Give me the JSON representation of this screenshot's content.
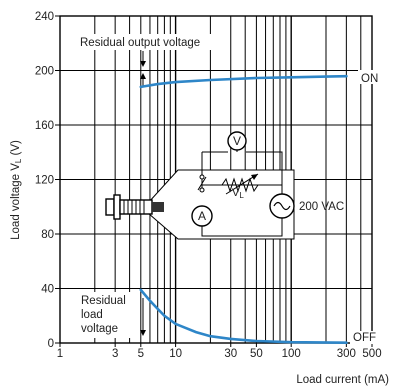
{
  "chart_data": {
    "type": "line",
    "xlabel": "Load current (mA)",
    "ylabel": "Load voltage V",
    "ylabel_sub": "L",
    "ylabel_unit": " (V)",
    "x_scale": "log",
    "xlim": [
      1,
      500
    ],
    "ylim": [
      0,
      240
    ],
    "x_ticks": [
      {
        "value": 1,
        "label": "1"
      },
      {
        "value": 3,
        "label": "3"
      },
      {
        "value": 5,
        "label": "5"
      },
      {
        "value": 10,
        "label": "10"
      },
      {
        "value": 30,
        "label": "30"
      },
      {
        "value": 50,
        "label": "50"
      },
      {
        "value": 100,
        "label": "100"
      },
      {
        "value": 300,
        "label": "300"
      },
      {
        "value": 500,
        "label": "500"
      }
    ],
    "x_minor_ticks": [
      2,
      4,
      6,
      7,
      8,
      9,
      20,
      40,
      60,
      70,
      80,
      90,
      200,
      400
    ],
    "y_ticks": [
      0,
      40,
      80,
      120,
      160,
      200,
      240
    ],
    "grid": true,
    "reference_lines": [
      {
        "y": 200,
        "style": "dashed"
      }
    ],
    "series": [
      {
        "name": "ON",
        "color": "#2e86c8",
        "points": [
          [
            5,
            188
          ],
          [
            7,
            190
          ],
          [
            10,
            191.5
          ],
          [
            20,
            193
          ],
          [
            50,
            194.5
          ],
          [
            100,
            195
          ],
          [
            200,
            195.5
          ],
          [
            300,
            195.8
          ]
        ]
      },
      {
        "name": "OFF",
        "color": "#2e86c8",
        "points": [
          [
            5,
            39
          ],
          [
            6,
            31
          ],
          [
            7,
            25
          ],
          [
            8,
            20
          ],
          [
            10,
            14
          ],
          [
            15,
            8
          ],
          [
            20,
            5
          ],
          [
            30,
            3
          ],
          [
            50,
            1.5
          ],
          [
            100,
            0.6
          ],
          [
            300,
            0.2
          ]
        ]
      }
    ],
    "annotations": [
      {
        "key": "residual_output",
        "text": "Residual output voltage"
      },
      {
        "key": "residual_load",
        "lines": [
          "Residual",
          "load",
          "voltage"
        ]
      }
    ],
    "inset": {
      "vl_label": "V",
      "vl_sub": "L",
      "voltmeter": "V",
      "ammeter": "A",
      "source": "200 VAC"
    }
  }
}
